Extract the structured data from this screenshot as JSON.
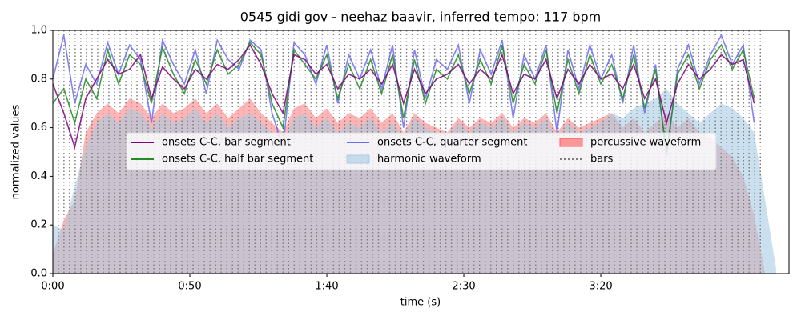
{
  "chart_data": {
    "type": "line",
    "title": "0545 gidi gov - neehaz baavir, inferred tempo: 117 bpm",
    "x_label": "time (s)",
    "y_label": "normalized values",
    "xlim": [
      0,
      268.7
    ],
    "ylim": [
      0,
      1
    ],
    "xticks": [
      {
        "value": 0,
        "label": "0:00"
      },
      {
        "value": 50,
        "label": "0:50"
      },
      {
        "value": 100,
        "label": "1:40"
      },
      {
        "value": 150,
        "label": "2:30"
      },
      {
        "value": 200,
        "label": "3:20"
      }
    ],
    "yticks": [
      {
        "value": 0,
        "label": "0.0"
      },
      0.2,
      0.4,
      0.6,
      0.8,
      {
        "value": 1,
        "label": "1.0"
      }
    ],
    "legend": "center",
    "x": [
      0,
      4,
      8,
      12,
      16,
      20,
      24,
      28,
      32,
      36,
      40,
      44,
      48,
      52,
      56,
      60,
      64,
      68,
      72,
      76,
      80,
      84,
      88,
      92,
      96,
      100,
      104,
      108,
      112,
      116,
      120,
      124,
      128,
      132,
      136,
      140,
      144,
      148,
      152,
      156,
      160,
      164,
      168,
      172,
      176,
      180,
      184,
      188,
      192,
      196,
      200,
      204,
      208,
      212,
      216,
      220,
      224,
      228,
      232,
      236,
      240,
      244,
      248,
      252,
      256,
      260,
      264
    ],
    "series": [
      {
        "name": "onsets C-C, bar segment",
        "kind": "line",
        "color": "#800080",
        "values": [
          0.78,
          0.66,
          0.52,
          0.72,
          0.8,
          0.88,
          0.82,
          0.84,
          0.9,
          0.72,
          0.85,
          0.8,
          0.76,
          0.84,
          0.8,
          0.86,
          0.84,
          0.88,
          0.94,
          0.86,
          0.74,
          0.66,
          0.9,
          0.88,
          0.82,
          0.86,
          0.76,
          0.82,
          0.8,
          0.84,
          0.78,
          0.86,
          0.7,
          0.84,
          0.74,
          0.8,
          0.82,
          0.86,
          0.78,
          0.84,
          0.8,
          0.9,
          0.74,
          0.82,
          0.8,
          0.88,
          0.72,
          0.84,
          0.78,
          0.86,
          0.8,
          0.82,
          0.76,
          0.86,
          0.72,
          0.8,
          0.62,
          0.78,
          0.86,
          0.8,
          0.84,
          0.9,
          0.86,
          0.88,
          0.7,
          null,
          null
        ]
      },
      {
        "name": "onsets C-C, half bar segment",
        "kind": "line",
        "color": "#228b22",
        "values": [
          0.7,
          0.76,
          0.62,
          0.8,
          0.72,
          0.92,
          0.78,
          0.9,
          0.86,
          0.7,
          0.93,
          0.82,
          0.74,
          0.88,
          0.78,
          0.92,
          0.82,
          0.86,
          0.95,
          0.9,
          0.7,
          0.6,
          0.92,
          0.86,
          0.8,
          0.9,
          0.72,
          0.86,
          0.76,
          0.88,
          0.74,
          0.9,
          0.64,
          0.88,
          0.7,
          0.84,
          0.8,
          0.9,
          0.74,
          0.88,
          0.78,
          0.94,
          0.7,
          0.86,
          0.78,
          0.92,
          0.66,
          0.88,
          0.74,
          0.9,
          0.78,
          0.86,
          0.72,
          0.9,
          0.68,
          0.84,
          0.5,
          0.82,
          0.9,
          0.76,
          0.88,
          0.94,
          0.84,
          0.92,
          0.72,
          null,
          null
        ]
      },
      {
        "name": "onsets C-C, quarter segment",
        "kind": "line",
        "color": "#6b6bf5",
        "values": [
          0.8,
          0.98,
          0.7,
          0.86,
          0.78,
          0.95,
          0.82,
          0.94,
          0.88,
          0.62,
          0.96,
          0.86,
          0.78,
          0.92,
          0.74,
          0.96,
          0.88,
          0.84,
          0.96,
          0.92,
          0.66,
          0.52,
          0.95,
          0.9,
          0.78,
          0.94,
          0.7,
          0.9,
          0.8,
          0.92,
          0.76,
          0.94,
          0.6,
          0.92,
          0.72,
          0.88,
          0.84,
          0.94,
          0.7,
          0.92,
          0.82,
          0.96,
          0.64,
          0.9,
          0.8,
          0.94,
          0.58,
          0.92,
          0.76,
          0.94,
          0.8,
          0.9,
          0.7,
          0.94,
          0.66,
          0.86,
          0.48,
          0.84,
          0.94,
          0.78,
          0.9,
          0.98,
          0.86,
          0.94,
          0.62,
          null,
          null
        ]
      },
      {
        "name": "harmonic waveform",
        "kind": "area",
        "color": "#a9cce3",
        "values": [
          0.2,
          0.18,
          0.36,
          0.52,
          0.62,
          0.66,
          0.62,
          0.68,
          0.66,
          0.6,
          0.66,
          0.62,
          0.64,
          0.68,
          0.62,
          0.66,
          0.6,
          0.64,
          0.66,
          0.62,
          0.58,
          0.54,
          0.64,
          0.66,
          0.6,
          0.64,
          0.58,
          0.62,
          0.6,
          0.64,
          0.58,
          0.62,
          0.56,
          0.64,
          0.6,
          0.58,
          0.56,
          0.62,
          0.58,
          0.62,
          0.6,
          0.64,
          0.58,
          0.62,
          0.6,
          0.64,
          0.56,
          0.62,
          0.58,
          0.6,
          0.62,
          0.66,
          0.64,
          0.68,
          0.7,
          0.72,
          0.76,
          0.7,
          0.66,
          0.62,
          0.66,
          0.7,
          0.68,
          0.64,
          0.58,
          0.3,
          0.02
        ]
      },
      {
        "name": "percussive waveform",
        "kind": "area",
        "color": "#ff5a5a",
        "values": [
          0.08,
          0.22,
          0.3,
          0.58,
          0.66,
          0.7,
          0.66,
          0.72,
          0.7,
          0.64,
          0.7,
          0.66,
          0.68,
          0.72,
          0.66,
          0.7,
          0.64,
          0.68,
          0.72,
          0.66,
          0.62,
          0.58,
          0.68,
          0.7,
          0.64,
          0.68,
          0.62,
          0.66,
          0.64,
          0.68,
          0.62,
          0.66,
          0.58,
          0.66,
          0.62,
          0.6,
          0.58,
          0.64,
          0.6,
          0.64,
          0.62,
          0.66,
          0.6,
          0.64,
          0.62,
          0.66,
          0.58,
          0.64,
          0.6,
          0.62,
          0.64,
          0.66,
          0.6,
          0.64,
          0.58,
          0.62,
          0.66,
          0.6,
          0.64,
          0.58,
          0.56,
          0.52,
          0.48,
          0.4,
          0.24,
          0.0,
          0.0
        ]
      },
      {
        "name": "bars",
        "kind": "vline",
        "color": "#808080",
        "x": [
          2,
          4.05,
          6.1,
          8.15,
          10.2,
          12.25,
          14.3,
          16.35,
          18.4,
          20.45,
          22.5,
          24.55,
          26.6,
          28.65,
          30.7,
          32.75,
          34.8,
          36.85,
          38.9,
          40.95,
          43,
          45.05,
          47.1,
          49.15,
          51.2,
          53.25,
          55.3,
          57.35,
          59.4,
          61.45,
          63.5,
          65.55,
          67.6,
          69.65,
          71.7,
          73.75,
          75.8,
          77.85,
          79.9,
          81.95,
          84,
          86.05,
          88.1,
          90.15,
          92.2,
          94.25,
          96.3,
          98.35,
          100.4,
          102.45,
          104.5,
          106.55,
          108.6,
          110.65,
          112.7,
          114.75,
          116.8,
          118.85,
          120.9,
          122.95,
          125,
          127.05,
          129.1,
          131.15,
          133.2,
          135.25,
          137.3,
          139.35,
          141.4,
          143.45,
          145.5,
          147.55,
          149.6,
          151.65,
          153.7,
          155.75,
          157.8,
          159.85,
          161.9,
          163.95,
          166,
          168.05,
          170.1,
          172.15,
          174.2,
          176.25,
          178.3,
          180.35,
          182.4,
          184.45,
          186.5,
          188.55,
          190.6,
          192.65,
          194.7,
          196.75,
          198.8,
          200.85,
          202.9,
          204.95,
          207,
          209.05,
          211.1,
          213.15,
          215.2,
          217.25,
          219.3,
          221.35,
          223.4,
          225.45,
          227.5,
          229.55,
          231.6,
          233.65,
          235.7,
          237.75,
          239.8,
          241.85,
          243.9,
          245.95,
          248,
          250.05,
          252.1,
          254.15,
          256.2,
          258.25
        ]
      }
    ]
  }
}
